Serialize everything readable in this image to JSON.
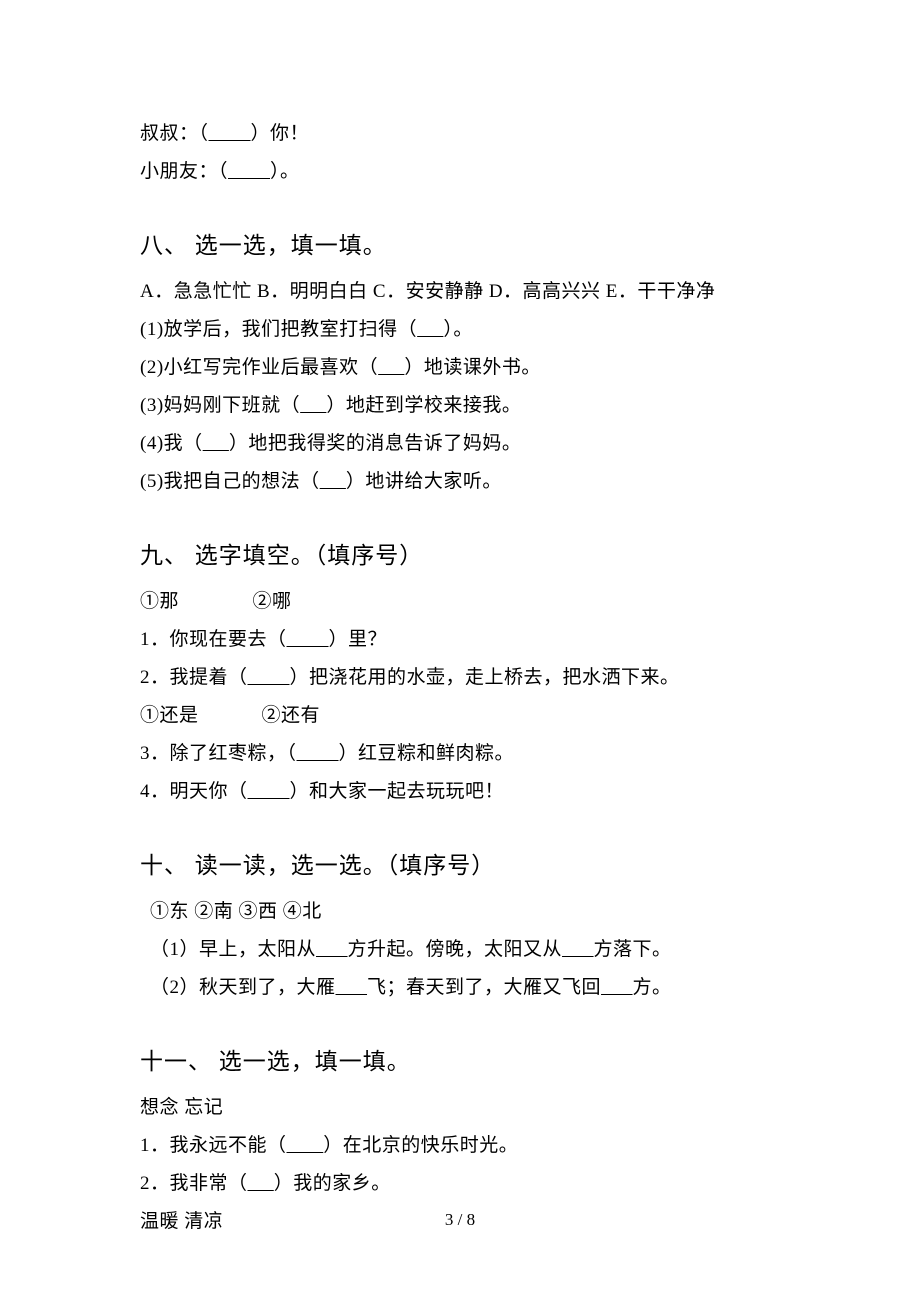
{
  "intro": {
    "line1_prefix": "叔叔：（",
    "line1_suffix": "）你！",
    "line2_prefix": "小朋友：（",
    "line2_suffix": "）。"
  },
  "section8": {
    "heading": "八、 选一选，填一填。",
    "options": "A．急急忙忙 B．明明白白 C．安安静静 D．高高兴兴 E．干干净净",
    "q1_pre": "(1)放学后，我们把教室打扫得（",
    "q1_post": "）。",
    "q2_pre": "(2)小红写完作业后最喜欢（",
    "q2_post": "）地读课外书。",
    "q3_pre": "(3)妈妈刚下班就（",
    "q3_post": "）地赶到学校来接我。",
    "q4_pre": "(4)我（",
    "q4_post": "）地把我得奖的消息告诉了妈妈。",
    "q5_pre": "(5)我把自己的想法（",
    "q5_post": "）地讲给大家听。"
  },
  "section9": {
    "heading": "九、 选字填空。（填序号）",
    "pair1_a": "①那",
    "pair1_b": "②哪",
    "q1_pre": "1．你现在要去（",
    "q1_post": "）里？",
    "q2_pre": "2．我提着（",
    "q2_post": "）把浇花用的水壶，走上桥去，把水洒下来。",
    "pair2_a": "①还是",
    "pair2_b": "②还有",
    "q3_pre": "3．除了红枣粽，（",
    "q3_post": "）红豆粽和鲜肉粽。",
    "q4_pre": "4．明天你（",
    "q4_post": "）和大家一起去玩玩吧！"
  },
  "section10": {
    "heading": "十、 读一读，选一选。（填序号）",
    "options": "①东  ②南  ③西  ④北",
    "q1_a": "（1）早上，太阳从",
    "q1_b": "方升起。傍晚，太阳又从",
    "q1_c": "方落下。",
    "q2_a": "（2）秋天到了，大雁",
    "q2_b": "飞；春天到了，大雁又飞回",
    "q2_c": "方。"
  },
  "section11": {
    "heading": "十一、 选一选，填一填。",
    "pair1": "想念   忘记",
    "q1_pre": "1．我永远不能（",
    "q1_post": "）在北京的快乐时光。",
    "q2_pre": "2．我非常（",
    "q2_post": "）我的家乡。",
    "pair2": "温暖    清凉"
  },
  "footer": "3 / 8",
  "blanks": {
    "long": "        ",
    "short": "     ",
    "med": "      ",
    "tiny": "       "
  }
}
